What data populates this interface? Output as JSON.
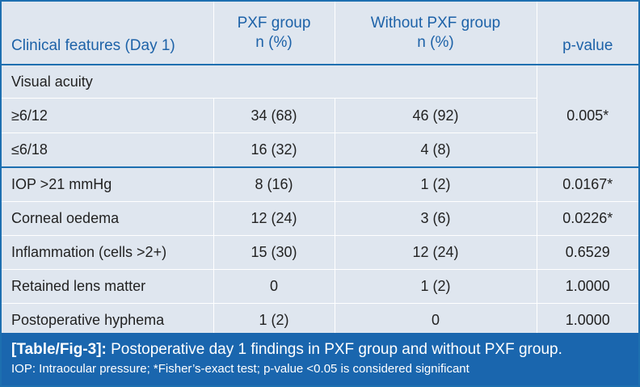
{
  "table": {
    "headers": [
      {
        "line1": "Clinical features (Day 1)",
        "line2": ""
      },
      {
        "line1": "PXF group",
        "line2": "n (%)"
      },
      {
        "line1": "Without PXF group",
        "line2": "n (%)"
      },
      {
        "line1": "p-value",
        "line2": ""
      }
    ],
    "section_label": "Visual acuity",
    "va_rows": [
      {
        "label": "≥6/12",
        "pxf": "34 (68)",
        "without": "46 (92)"
      },
      {
        "label": "≤6/18",
        "pxf": "16 (32)",
        "without": "4 (8)"
      }
    ],
    "va_pvalue": "0.005*",
    "rows": [
      {
        "label": "IOP >21 mmHg",
        "pxf": "8 (16)",
        "without": "1 (2)",
        "p": "0.0167*"
      },
      {
        "label": "Corneal oedema",
        "pxf": "12 (24)",
        "without": "3 (6)",
        "p": "0.0226*"
      },
      {
        "label": "Inflammation (cells >2+)",
        "pxf": "15 (30)",
        "without": "12 (24)",
        "p": "0.6529"
      },
      {
        "label": "Retained lens matter",
        "pxf": "0",
        "without": "1 (2)",
        "p": "1.0000"
      },
      {
        "label": "Postoperative hyphema",
        "pxf": "1 (2)",
        "without": "0",
        "p": "1.0000"
      }
    ]
  },
  "caption": {
    "figure_ref": "[Table/Fig-3]:",
    "title": " Postoperative day 1 findings in PXF group and without PXF group.",
    "footnote": "IOP: Intraocular pressure; *Fisher’s-exact test; p-value <0.05 is considered significant"
  },
  "colors": {
    "accent": "#1d6fb0",
    "header_text": "#1d62a8",
    "background": "#dfe6ef",
    "caption_bg": "#1a66ae"
  }
}
